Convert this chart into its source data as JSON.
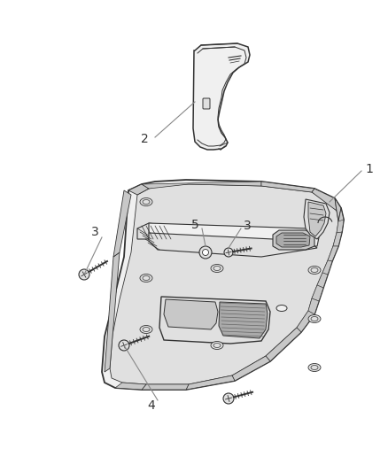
{
  "background_color": "#ffffff",
  "fig_width": 4.38,
  "fig_height": 5.33,
  "dpi": 100,
  "line_color": "#333333",
  "label_color": "#333333",
  "leader_color": "#888888",
  "fill_light": "#f0f0f0",
  "fill_mid": "#e0e0e0",
  "fill_dark": "#c8c8c8",
  "fill_darker": "#aaaaaa"
}
